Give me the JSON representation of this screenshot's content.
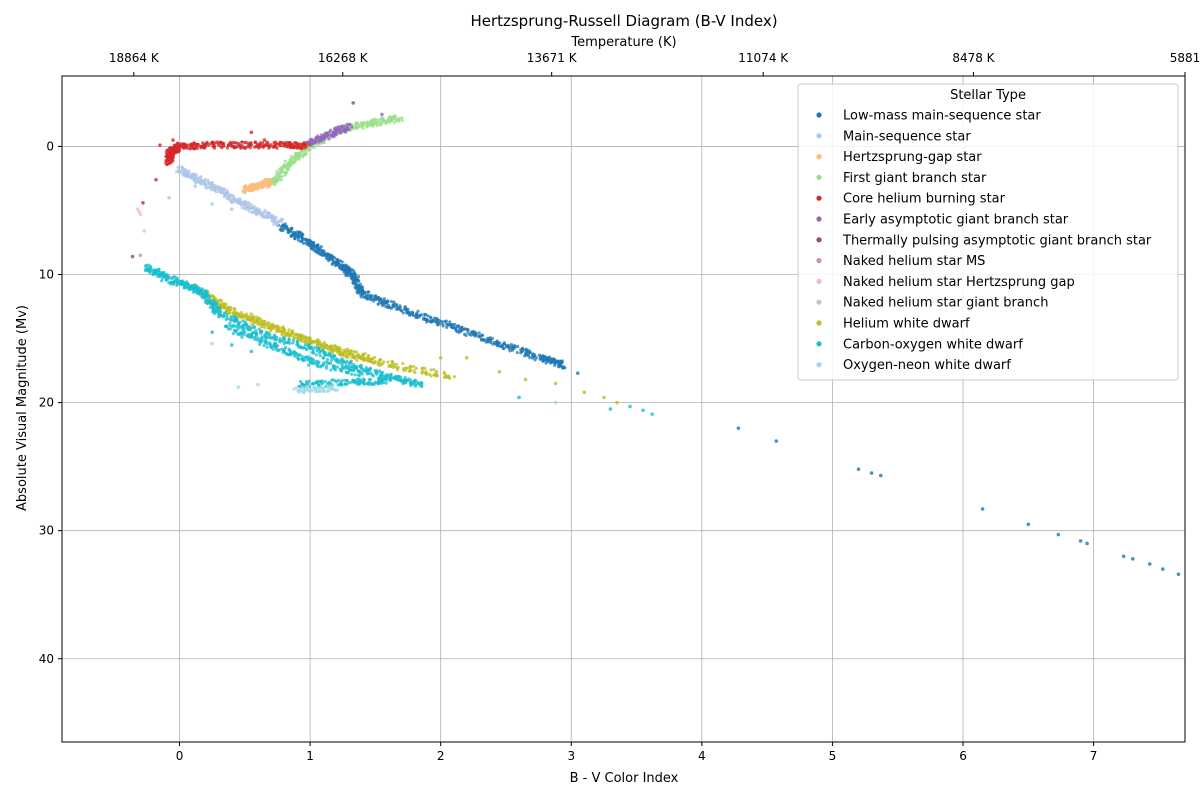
{
  "chart_data": {
    "type": "scatter",
    "title": "Hertzsprung-Russell Diagram (B-V Index)",
    "xlabel": "B - V Color Index",
    "ylabel": "Absolute Visual Magnitude (Mv)",
    "top_xlabel": "Temperature (K)",
    "xlim": [
      -0.9,
      7.7
    ],
    "ylim": [
      46.5,
      -5.5
    ],
    "y_inverted": true,
    "grid": true,
    "x_ticks": [
      0,
      1,
      2,
      3,
      4,
      5,
      6,
      7
    ],
    "y_ticks": [
      0,
      10,
      20,
      30,
      40
    ],
    "top_ticks": [
      {
        "x": -0.35,
        "label": "18864 K"
      },
      {
        "x": 1.25,
        "label": "16268 K"
      },
      {
        "x": 2.85,
        "label": "13671 K"
      },
      {
        "x": 4.47,
        "label": "11074 K"
      },
      {
        "x": 6.08,
        "label": "8478 K"
      },
      {
        "x": 7.7,
        "label": "5881"
      }
    ],
    "legend": {
      "title": "Stellar Type",
      "position": "top-right"
    },
    "series": [
      {
        "name": "Low-mass main-sequence star",
        "color": "#1f77b4",
        "segments": [
          [
            [
              0.78,
              6.2
            ],
            [
              0.95,
              7.2
            ],
            [
              1.1,
              8.3
            ],
            [
              1.25,
              9.4
            ],
            [
              1.33,
              10.1
            ],
            [
              1.4,
              11.5
            ],
            [
              1.6,
              12.3
            ],
            [
              1.9,
              13.4
            ],
            [
              2.2,
              14.5
            ],
            [
              2.5,
              15.6
            ],
            [
              2.8,
              16.6
            ],
            [
              2.95,
              17.1
            ]
          ]
        ],
        "points": [
          [
            3.05,
            17.7
          ],
          [
            4.28,
            22.0
          ],
          [
            4.57,
            23.0
          ],
          [
            5.2,
            25.2
          ],
          [
            5.3,
            25.5
          ],
          [
            5.37,
            25.7
          ],
          [
            6.15,
            28.3
          ],
          [
            6.5,
            29.5
          ],
          [
            6.73,
            30.3
          ],
          [
            6.9,
            30.8
          ],
          [
            6.95,
            31.0
          ],
          [
            7.23,
            32.0
          ],
          [
            7.3,
            32.2
          ],
          [
            7.43,
            32.6
          ],
          [
            7.53,
            33.0
          ],
          [
            7.65,
            33.4
          ]
        ]
      },
      {
        "name": "Main-sequence star",
        "color": "#aec7e8",
        "segments": [
          [
            [
              0.0,
              1.8
            ],
            [
              0.15,
              2.6
            ],
            [
              0.3,
              3.4
            ],
            [
              0.45,
              4.3
            ],
            [
              0.6,
              5.1
            ],
            [
              0.78,
              6.0
            ]
          ]
        ],
        "points": [
          [
            0.05,
            2.3
          ],
          [
            0.12,
            3.1
          ],
          [
            0.2,
            3.0
          ],
          [
            0.35,
            3.8
          ],
          [
            0.5,
            3.6
          ],
          [
            0.4,
            4.9
          ],
          [
            0.25,
            4.5
          ]
        ]
      },
      {
        "name": "Hertzsprung-gap star",
        "color": "#ffbb78",
        "segments": [
          [
            [
              0.5,
              3.3
            ],
            [
              0.62,
              3.1
            ],
            [
              0.7,
              2.7
            ]
          ]
        ],
        "points": [
          [
            0.55,
            3.0
          ],
          [
            0.66,
            2.6
          ]
        ]
      },
      {
        "name": "First giant branch star",
        "color": "#98df8a",
        "segments": [
          [
            [
              0.72,
              2.9
            ],
            [
              0.85,
              1.2
            ],
            [
              1.0,
              0.0
            ],
            [
              1.2,
              -1.2
            ],
            [
              1.45,
              -1.8
            ],
            [
              1.7,
              -2.2
            ]
          ]
        ],
        "points": [
          [
            0.8,
            1.6
          ],
          [
            0.9,
            0.9
          ],
          [
            -0.08,
            4.0
          ]
        ]
      },
      {
        "name": "Core helium burning star",
        "color": "#d62728",
        "segments": [
          [
            [
              -0.08,
              1.2
            ],
            [
              -0.07,
              0.4
            ],
            [
              0.0,
              0.0
            ],
            [
              0.2,
              -0.1
            ],
            [
              0.5,
              -0.1
            ],
            [
              0.8,
              -0.1
            ],
            [
              1.0,
              -0.05
            ]
          ]
        ],
        "points": [
          [
            -0.15,
            -0.1
          ],
          [
            -0.05,
            -0.5
          ],
          [
            -0.18,
            2.6
          ],
          [
            -0.28,
            4.4
          ],
          [
            0.55,
            -1.1
          ],
          [
            0.65,
            -0.5
          ]
        ]
      },
      {
        "name": "Early asymptotic giant branch star",
        "color": "#9467bd",
        "segments": [
          [
            [
              1.0,
              -0.3
            ],
            [
              1.15,
              -0.9
            ],
            [
              1.3,
              -1.6
            ]
          ]
        ],
        "points": [
          [
            1.55,
            -2.5
          ]
        ]
      },
      {
        "name": "Thermally pulsing asymptotic giant branch star",
        "color": "#8c564b",
        "segments": [],
        "points": [
          [
            1.33,
            -3.4
          ],
          [
            -0.36,
            8.6
          ]
        ]
      },
      {
        "name": "Naked helium star MS",
        "color": "#c49c94",
        "segments": [],
        "points": [
          [
            -0.3,
            8.5
          ]
        ]
      },
      {
        "name": "Naked helium star Hertzsprung gap",
        "color": "#f7b6d2",
        "segments": [],
        "points": [
          [
            -0.32,
            4.9
          ],
          [
            -0.31,
            5.1
          ],
          [
            -0.3,
            5.3
          ],
          [
            -0.27,
            6.6
          ]
        ]
      },
      {
        "name": "Naked helium star giant branch",
        "color": "#c7c7c7",
        "segments": [],
        "points": []
      },
      {
        "name": "Helium white dwarf",
        "color": "#bcbd22",
        "segments": [
          [
            [
              0.2,
              11.5
            ],
            [
              0.4,
              13.0
            ],
            [
              0.8,
              14.5
            ],
            [
              1.2,
              16.0
            ],
            [
              1.6,
              17.0
            ],
            [
              2.1,
              18.0
            ]
          ],
          [
            [
              0.3,
              12.5
            ],
            [
              0.7,
              14.0
            ],
            [
              1.1,
              15.5
            ],
            [
              1.5,
              16.7
            ]
          ]
        ],
        "points": [
          [
            0.12,
            10.8
          ],
          [
            2.0,
            16.5
          ],
          [
            2.2,
            16.5
          ],
          [
            2.45,
            17.6
          ],
          [
            2.65,
            18.2
          ],
          [
            2.88,
            18.5
          ],
          [
            3.1,
            19.2
          ],
          [
            3.25,
            19.6
          ],
          [
            3.35,
            20.0
          ]
        ]
      },
      {
        "name": "Carbon-oxygen white dwarf",
        "color": "#17becf",
        "segments": [
          [
            [
              -0.25,
              9.4
            ],
            [
              -0.1,
              10.3
            ],
            [
              0.1,
              11.0
            ],
            [
              0.2,
              11.6
            ],
            [
              0.3,
              13.0
            ],
            [
              0.6,
              14.5
            ],
            [
              1.0,
              15.8
            ],
            [
              1.3,
              17.0
            ],
            [
              1.6,
              18.0
            ],
            [
              1.85,
              18.6
            ]
          ],
          [
            [
              0.35,
              14.0
            ],
            [
              0.7,
              15.5
            ],
            [
              1.0,
              16.8
            ],
            [
              1.4,
              17.8
            ]
          ],
          [
            [
              0.9,
              18.6
            ],
            [
              1.3,
              18.4
            ],
            [
              1.6,
              18.3
            ]
          ]
        ],
        "points": [
          [
            0.25,
            14.5
          ],
          [
            0.4,
            15.5
          ],
          [
            0.55,
            16.0
          ],
          [
            2.6,
            19.6
          ],
          [
            3.3,
            20.5
          ],
          [
            3.45,
            20.3
          ],
          [
            3.55,
            20.6
          ],
          [
            3.62,
            20.9
          ]
        ]
      },
      {
        "name": "Oxygen-neon white dwarf",
        "color": "#9edae5",
        "segments": [
          [
            [
              0.9,
              19.0
            ],
            [
              1.2,
              18.9
            ]
          ]
        ],
        "points": [
          [
            0.25,
            15.4
          ],
          [
            0.45,
            18.8
          ],
          [
            0.6,
            18.6
          ],
          [
            2.88,
            20.0
          ]
        ]
      }
    ]
  }
}
